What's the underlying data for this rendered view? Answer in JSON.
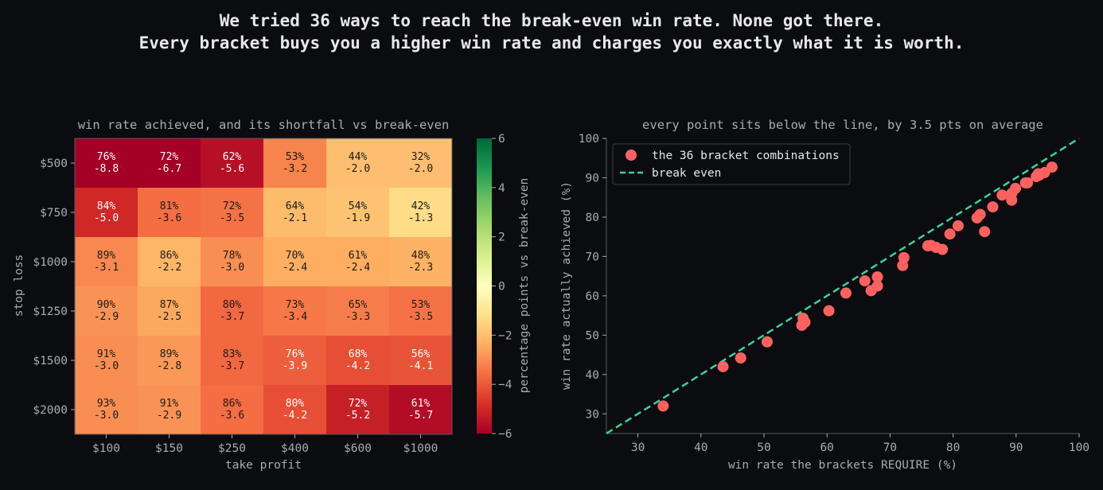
{
  "title_lines": [
    "We tried 36 ways to reach the break-even win rate. None got there.",
    "Every bracket buys you a higher win rate and charges you exactly what it is worth."
  ],
  "colors": {
    "background": "#0b0c10",
    "text": "#e8e8e8",
    "axis_text": "#a8abb3",
    "scatter_point": "#ff6161",
    "break_even_line": "#35d49a"
  },
  "chart_data": [
    {
      "type": "heatmap",
      "title": "win rate achieved, and its shortfall vs break-even",
      "xlabel": "take profit",
      "ylabel": "stop loss",
      "x_categories": [
        "$100",
        "$150",
        "$250",
        "$400",
        "$600",
        "$1000"
      ],
      "y_categories": [
        "$500",
        "$750",
        "$1000",
        "$1250",
        "$1500",
        "$2000"
      ],
      "win_rate_labels": [
        [
          "76%",
          "72%",
          "62%",
          "53%",
          "44%",
          "32%"
        ],
        [
          "84%",
          "81%",
          "72%",
          "64%",
          "54%",
          "42%"
        ],
        [
          "89%",
          "86%",
          "78%",
          "70%",
          "61%",
          "48%"
        ],
        [
          "90%",
          "87%",
          "80%",
          "73%",
          "65%",
          "53%"
        ],
        [
          "91%",
          "89%",
          "83%",
          "76%",
          "68%",
          "56%"
        ],
        [
          "93%",
          "91%",
          "86%",
          "80%",
          "72%",
          "61%"
        ]
      ],
      "shortfall_values": [
        [
          -8.8,
          -6.7,
          -5.6,
          -3.2,
          -2.0,
          -2.0
        ],
        [
          -5.0,
          -3.6,
          -3.5,
          -2.1,
          -1.9,
          -1.3
        ],
        [
          -3.1,
          -2.2,
          -3.0,
          -2.4,
          -2.4,
          -2.3
        ],
        [
          -2.9,
          -2.5,
          -3.7,
          -3.4,
          -3.3,
          -3.5
        ],
        [
          -3.0,
          -2.8,
          -3.7,
          -3.9,
          -4.2,
          -4.1
        ],
        [
          -3.0,
          -2.9,
          -3.6,
          -4.2,
          -5.2,
          -5.7
        ]
      ],
      "colorbar": {
        "label": "percentage points vs break-even",
        "range": [
          -6,
          6
        ],
        "ticks": [
          6,
          4,
          2,
          0,
          -2,
          -4,
          -6
        ],
        "colormap": "RdYlGn"
      }
    },
    {
      "type": "scatter",
      "title": "every point sits below the line, by 3.5 pts on average",
      "xlabel": "win rate the brackets REQUIRE (%)",
      "ylabel": "win rate actually achieved (%)",
      "xlim": [
        25,
        100
      ],
      "ylim": [
        25,
        100
      ],
      "xticks": [
        30,
        40,
        50,
        60,
        70,
        80,
        90,
        100
      ],
      "yticks": [
        30,
        40,
        50,
        60,
        70,
        80,
        90,
        100
      ],
      "legend_position": "upper-left",
      "series": [
        {
          "name": "the 36 bracket combinations",
          "kind": "points",
          "x": [
            34.0,
            43.5,
            46.3,
            50.5,
            56.0,
            56.2,
            56.5,
            60.3,
            63.0,
            66.0,
            67.0,
            68.0,
            68.0,
            72.0,
            72.2,
            76.0,
            76.5,
            77.3,
            78.3,
            79.5,
            80.8,
            83.8,
            84.3,
            85.0,
            86.3,
            87.8,
            89.3,
            89.3,
            89.9,
            91.5,
            91.8,
            93.2,
            93.7,
            94.5,
            95.7,
            93.5
          ],
          "y": [
            32.0,
            42.0,
            44.2,
            48.3,
            52.5,
            54.3,
            53.3,
            56.2,
            60.7,
            63.8,
            61.3,
            64.8,
            62.5,
            67.7,
            69.7,
            72.7,
            72.8,
            72.3,
            71.8,
            75.7,
            77.8,
            79.8,
            80.7,
            76.3,
            82.6,
            85.6,
            86.0,
            84.3,
            87.3,
            88.7,
            88.7,
            90.3,
            90.7,
            91.3,
            92.7,
            91.0
          ]
        },
        {
          "name": "break even",
          "kind": "line",
          "x": [
            25,
            100
          ],
          "y": [
            25,
            100
          ]
        }
      ]
    }
  ]
}
